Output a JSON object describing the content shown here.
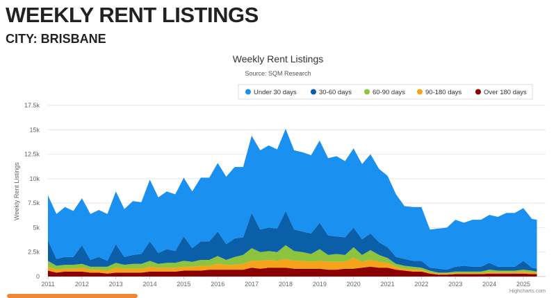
{
  "page": {
    "title": "WEEKLY RENT LISTINGS",
    "subtitle": "CITY: BRISBANE"
  },
  "chart_data": {
    "type": "area",
    "stacked": true,
    "title": "Weekly Rent Listings",
    "subtitle": "Source: SQM Research",
    "xlabel": "",
    "ylabel": "Weekly Rent Listings",
    "ylim": [
      0,
      17500
    ],
    "xlim": [
      2011,
      2025.4
    ],
    "yticks": [
      0,
      2500,
      5000,
      7500,
      10000,
      12500,
      15000,
      17500
    ],
    "ytick_labels": [
      "0",
      "2.5k",
      "5k",
      "7.5k",
      "10k",
      "12.5k",
      "15k",
      "17.5k"
    ],
    "xticks": [
      2011,
      2012,
      2013,
      2014,
      2015,
      2016,
      2017,
      2018,
      2019,
      2020,
      2021,
      2022,
      2023,
      2024,
      2025
    ],
    "xtick_labels": [
      "2011",
      "2012",
      "2013",
      "2014",
      "2015",
      "2016",
      "2017",
      "2018",
      "2019",
      "2020",
      "2021",
      "2022",
      "2023",
      "2024",
      "2025"
    ],
    "grid": true,
    "legend_position": "top-right",
    "credits": "Highcharts.com",
    "x": [
      2011,
      2011.25,
      2011.5,
      2011.75,
      2012,
      2012.25,
      2012.5,
      2012.75,
      2013,
      2013.25,
      2013.5,
      2013.75,
      2014,
      2014.25,
      2014.5,
      2014.75,
      2015,
      2015.25,
      2015.5,
      2015.75,
      2016,
      2016.25,
      2016.5,
      2016.75,
      2017,
      2017.25,
      2017.5,
      2017.75,
      2018,
      2018.25,
      2018.5,
      2018.75,
      2019,
      2019.25,
      2019.5,
      2019.75,
      2020,
      2020.25,
      2020.5,
      2020.75,
      2021,
      2021.25,
      2021.5,
      2021.75,
      2022,
      2022.25,
      2022.5,
      2022.75,
      2023,
      2023.25,
      2023.5,
      2023.75,
      2024,
      2024.25,
      2024.5,
      2024.75,
      2025,
      2025.25,
      2025.4
    ],
    "series": [
      {
        "name": "Over 180 days",
        "color": "#8b0000",
        "values": [
          600,
          400,
          500,
          500,
          500,
          400,
          400,
          300,
          400,
          400,
          400,
          400,
          500,
          500,
          500,
          500,
          600,
          600,
          600,
          700,
          700,
          700,
          700,
          700,
          900,
          800,
          900,
          900,
          900,
          800,
          800,
          800,
          800,
          700,
          700,
          800,
          800,
          900,
          1000,
          900,
          900,
          700,
          600,
          500,
          500,
          300,
          200,
          200,
          250,
          250,
          250,
          250,
          300,
          300,
          300,
          300,
          300,
          250,
          250
        ]
      },
      {
        "name": "90-180 days",
        "color": "#f7a21b",
        "values": [
          400,
          300,
          300,
          300,
          400,
          300,
          300,
          300,
          500,
          400,
          400,
          400,
          500,
          400,
          400,
          400,
          400,
          400,
          500,
          400,
          600,
          500,
          500,
          600,
          700,
          800,
          800,
          700,
          900,
          800,
          800,
          700,
          800,
          800,
          800,
          700,
          1100,
          600,
          700,
          600,
          500,
          300,
          200,
          200,
          200,
          100,
          100,
          100,
          100,
          100,
          100,
          100,
          150,
          150,
          150,
          150,
          200,
          150,
          150
        ]
      },
      {
        "name": "60-90 days",
        "color": "#8cc43f",
        "values": [
          600,
          400,
          400,
          400,
          400,
          300,
          300,
          400,
          500,
          400,
          500,
          500,
          600,
          400,
          500,
          500,
          600,
          500,
          600,
          600,
          800,
          500,
          800,
          900,
          1300,
          900,
          900,
          900,
          1400,
          1000,
          900,
          800,
          1200,
          700,
          800,
          700,
          1100,
          700,
          1000,
          700,
          500,
          300,
          300,
          300,
          200,
          200,
          100,
          100,
          150,
          150,
          150,
          150,
          250,
          150,
          150,
          150,
          200,
          200,
          100
        ]
      },
      {
        "name": "30-60 days",
        "color": "#0b5ea8",
        "values": [
          2100,
          700,
          800,
          800,
          1900,
          700,
          1000,
          600,
          1900,
          800,
          900,
          1000,
          2000,
          1100,
          1400,
          1200,
          2500,
          1400,
          1900,
          1900,
          2500,
          1600,
          1900,
          1800,
          3600,
          2300,
          2400,
          2400,
          3500,
          2200,
          2100,
          2100,
          2700,
          2000,
          1800,
          1800,
          2000,
          1600,
          1700,
          1300,
          1100,
          700,
          700,
          600,
          700,
          300,
          400,
          300,
          500,
          600,
          500,
          500,
          700,
          400,
          400,
          400,
          900,
          300,
          300
        ]
      },
      {
        "name": "Under 30 days",
        "color": "#1a90f0",
        "values": [
          4600,
          4600,
          5100,
          4700,
          4800,
          4700,
          4800,
          4800,
          5400,
          4900,
          5500,
          5300,
          6300,
          5700,
          5900,
          5800,
          6000,
          5800,
          6500,
          6500,
          7000,
          6900,
          7300,
          7200,
          7900,
          8100,
          8400,
          8100,
          8400,
          8100,
          8100,
          8000,
          8400,
          7900,
          8200,
          7800,
          8100,
          7700,
          8100,
          7500,
          7300,
          6400,
          5400,
          5500,
          5500,
          3900,
          4100,
          4300,
          4800,
          4400,
          4800,
          4800,
          4900,
          5100,
          5500,
          5500,
          5400,
          5000,
          5000
        ]
      }
    ],
    "legend": [
      "Under 30 days",
      "30-60 days",
      "60-90 days",
      "90-180 days",
      "Over 180 days"
    ],
    "legend_colors": [
      "#1a90f0",
      "#0b5ea8",
      "#8cc43f",
      "#f7a21b",
      "#8b0000"
    ]
  }
}
